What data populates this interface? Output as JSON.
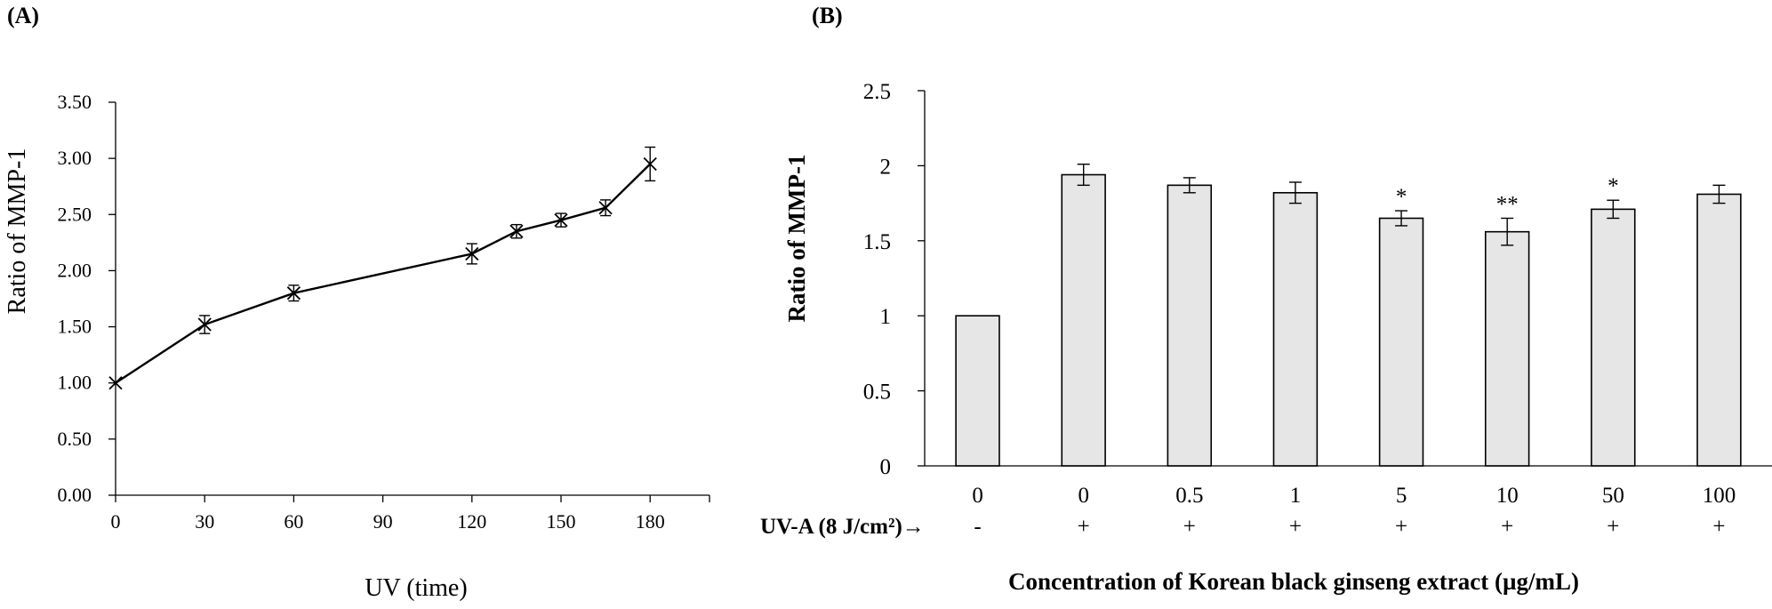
{
  "chart_data": [
    {
      "type": "line",
      "panel_label": "(A)",
      "title": "",
      "xlabel": "UV (time)",
      "ylabel": "Ratio of MMP-1",
      "x": [
        0,
        30,
        60,
        120,
        135,
        150,
        165,
        180
      ],
      "series": [
        {
          "name": "MMP-1",
          "values": [
            1.0,
            1.52,
            1.8,
            2.15,
            2.35,
            2.45,
            2.56,
            2.95
          ],
          "errors": [
            0,
            0.08,
            0.07,
            0.09,
            0.06,
            0.06,
            0.07,
            0.15
          ]
        }
      ],
      "xticks": [
        "0",
        "30",
        "60",
        "90",
        "120",
        "150",
        "180"
      ],
      "xtick_values": [
        0,
        30,
        60,
        90,
        120,
        150,
        180
      ],
      "yticks": [
        "0.00",
        "0.50",
        "1.00",
        "1.50",
        "2.00",
        "2.50",
        "3.00",
        "3.50"
      ],
      "xlim": [
        0,
        200
      ],
      "ylim": [
        0,
        3.5
      ],
      "grid": false
    },
    {
      "type": "bar",
      "panel_label": "(B)",
      "title": "",
      "xlabel": "Concentration of Korean black ginseng extract (µg/mL)",
      "ylabel": "Ratio of MMP-1",
      "categories": [
        "0",
        "0",
        "0.5",
        "1",
        "5",
        "10",
        "50",
        "100"
      ],
      "uv_label": "UV-A (8 J/cm²)→",
      "uv_signs": [
        "-",
        "+",
        "+",
        "+",
        "+",
        "+",
        "+",
        "+"
      ],
      "values": [
        1.0,
        1.94,
        1.87,
        1.82,
        1.65,
        1.56,
        1.71,
        1.81
      ],
      "errors": [
        0,
        0.07,
        0.05,
        0.07,
        0.05,
        0.09,
        0.06,
        0.06
      ],
      "significance": [
        "",
        "",
        "",
        "",
        "*",
        "**",
        "*",
        ""
      ],
      "yticks": [
        "0",
        "0.5",
        "1",
        "1.5",
        "2",
        "2.5"
      ],
      "ylim": [
        0,
        2.5
      ],
      "grid": false
    }
  ],
  "colors": {
    "bar_fill": "#e6e6e6",
    "stroke": "#000000"
  }
}
